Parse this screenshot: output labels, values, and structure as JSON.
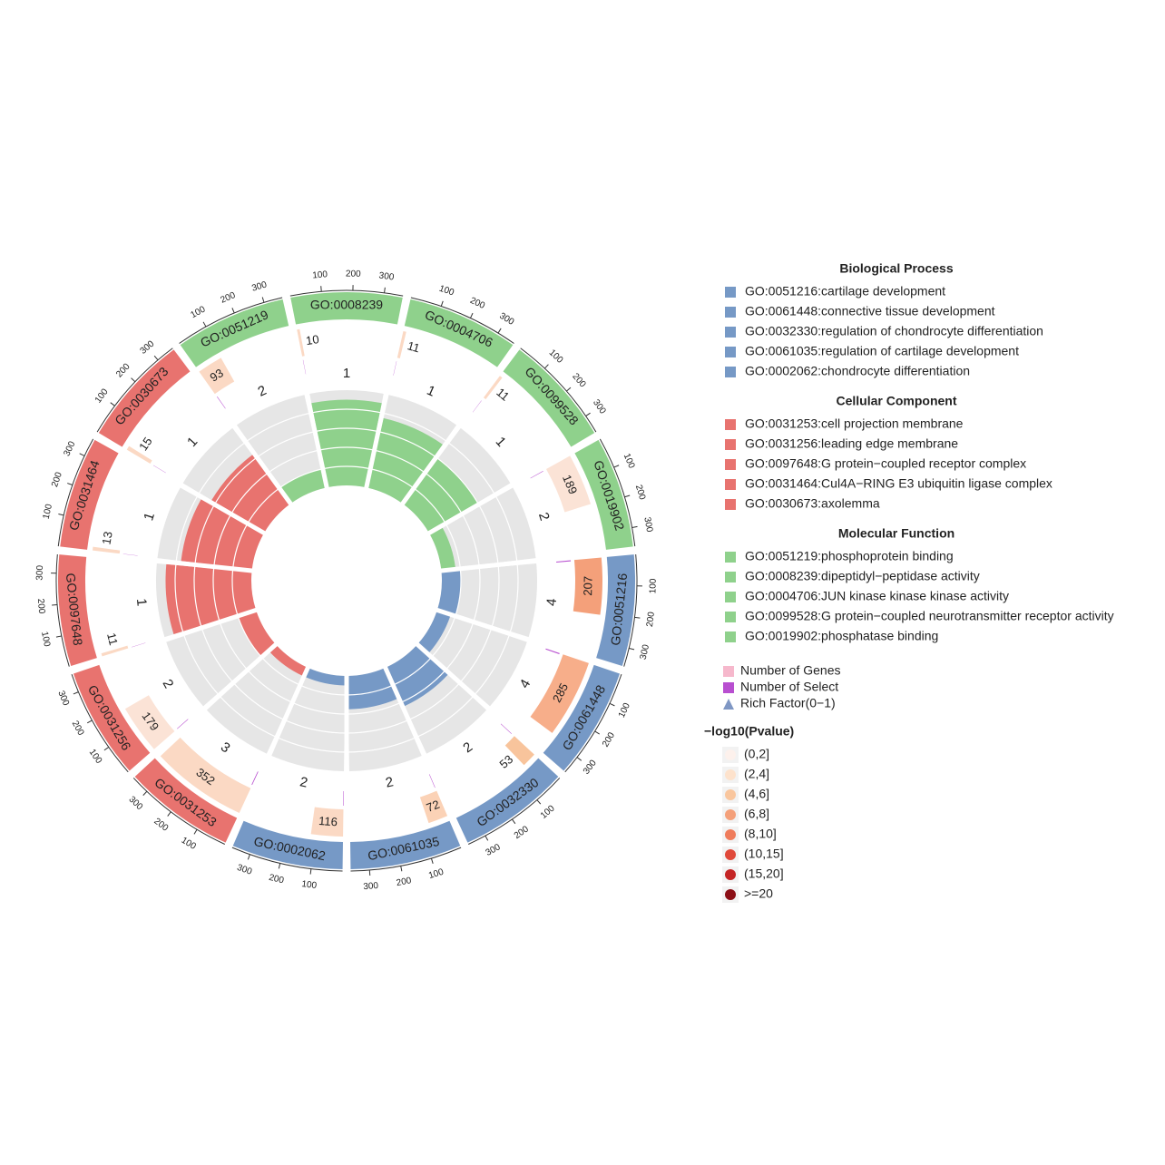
{
  "chart_data": {
    "type": "circos",
    "axis_lim": [
      0,
      360
    ],
    "axis_ticks": [
      100,
      200,
      300
    ],
    "rich_lim": [
      0,
      1
    ],
    "sectors": [
      {
        "id": "GO:0051219",
        "color": "#8fd18c",
        "genes": 93,
        "gene_color": "#fbd9c4",
        "select": 2,
        "rich_factor": 0.2
      },
      {
        "id": "GO:0008239",
        "color": "#8fd18c",
        "genes": 10,
        "gene_color": "#fbd9c4",
        "select": 1,
        "rich_factor": 0.9
      },
      {
        "id": "GO:0004706",
        "color": "#8fd18c",
        "genes": 11,
        "gene_color": "#fbd9c4",
        "select": 1,
        "rich_factor": 0.75
      },
      {
        "id": "GO:0099528",
        "color": "#8fd18c",
        "genes": 11,
        "gene_color": "#fbd9c4",
        "select": 1,
        "rich_factor": 0.6
      },
      {
        "id": "GO:0019902",
        "color": "#8fd18c",
        "genes": 189,
        "gene_color": "#fbe3d6",
        "select": 2,
        "rich_factor": 0.15
      },
      {
        "id": "GO:0051216",
        "color": "#7699c6",
        "genes": 207,
        "gene_color": "#f4a07a",
        "select": 4,
        "rich_factor": 0.2
      },
      {
        "id": "GO:0061448",
        "color": "#7699c6",
        "genes": 285,
        "gene_color": "#f7ae8a",
        "select": 4,
        "rich_factor": 0.15
      },
      {
        "id": "GO:0032330",
        "color": "#7699c6",
        "genes": 53,
        "gene_color": "#f8c49c",
        "select": 2,
        "rich_factor": 0.45
      },
      {
        "id": "GO:0061035",
        "color": "#7699c6",
        "genes": 72,
        "gene_color": "#fbd2b6",
        "select": 2,
        "rich_factor": 0.35
      },
      {
        "id": "GO:0002062",
        "color": "#7699c6",
        "genes": 116,
        "gene_color": "#fbd9c4",
        "select": 2,
        "rich_factor": 0.1
      },
      {
        "id": "GO:0031253",
        "color": "#e8736f",
        "genes": 352,
        "gene_color": "#fbd9c4",
        "select": 3,
        "rich_factor": 0.1
      },
      {
        "id": "GO:0031256",
        "color": "#e8736f",
        "genes": 179,
        "gene_color": "#fbe3d6",
        "select": 2,
        "rich_factor": 0.2
      },
      {
        "id": "GO:0097648",
        "color": "#e8736f",
        "genes": 11,
        "gene_color": "#fbd9c4",
        "select": 1,
        "rich_factor": 0.9
      },
      {
        "id": "GO:0031464",
        "color": "#e8736f",
        "genes": 13,
        "gene_color": "#fbd9c4",
        "select": 1,
        "rich_factor": 0.75
      },
      {
        "id": "GO:0030673",
        "color": "#e8736f",
        "genes": 15,
        "gene_color": "#fbd9c4",
        "select": 1,
        "rich_factor": 0.65
      }
    ],
    "legend": {
      "groups": [
        {
          "title": "Biological Process",
          "color": "#7699c6",
          "items": [
            "GO:0051216:cartilage development",
            "GO:0061448:connective tissue development",
            "GO:0032330:regulation of chondrocyte differentiation",
            "GO:0061035:regulation of cartilage development",
            "GO:0002062:chondrocyte differentiation"
          ]
        },
        {
          "title": "Cellular Component",
          "color": "#e8736f",
          "items": [
            "GO:0031253:cell projection membrane",
            "GO:0031256:leading edge membrane",
            "GO:0097648:G protein−coupled receptor complex",
            "GO:0031464:Cul4A−RING E3 ubiquitin ligase complex",
            "GO:0030673:axolemma"
          ]
        },
        {
          "title": "Molecular Function",
          "color": "#8fd18c",
          "items": [
            "GO:0051219:phosphoprotein binding",
            "GO:0008239:dipeptidyl−peptidase activity",
            "GO:0004706:JUN kinase kinase kinase activity",
            "GO:0099528:G protein−coupled neurotransmitter receptor activity",
            "GO:0019902:phosphatase binding"
          ]
        }
      ],
      "tracks": [
        {
          "label": "Number of Genes",
          "color": "#f6b8cc",
          "shape": "square"
        },
        {
          "label": "Number of Select",
          "color": "#b84fd0",
          "shape": "square"
        },
        {
          "label": "Rich Factor(0−1)",
          "color": "#7f97c4",
          "shape": "triangle"
        }
      ],
      "pvalue": {
        "title": "−log10(Pvalue)",
        "bins": [
          {
            "label": "(0,2]",
            "color": "#fdf1ec"
          },
          {
            "label": "(2,4]",
            "color": "#fde2cc"
          },
          {
            "label": "(4,6]",
            "color": "#f9c69e"
          },
          {
            "label": "(6,8]",
            "color": "#f4a07a"
          },
          {
            "label": "(8,10]",
            "color": "#ef7c5c"
          },
          {
            "label": "(10,15]",
            "color": "#e0493a"
          },
          {
            "label": "(15,20]",
            "color": "#c42525"
          },
          {
            "label": ">=20",
            "color": "#8c0f16"
          }
        ]
      }
    }
  }
}
